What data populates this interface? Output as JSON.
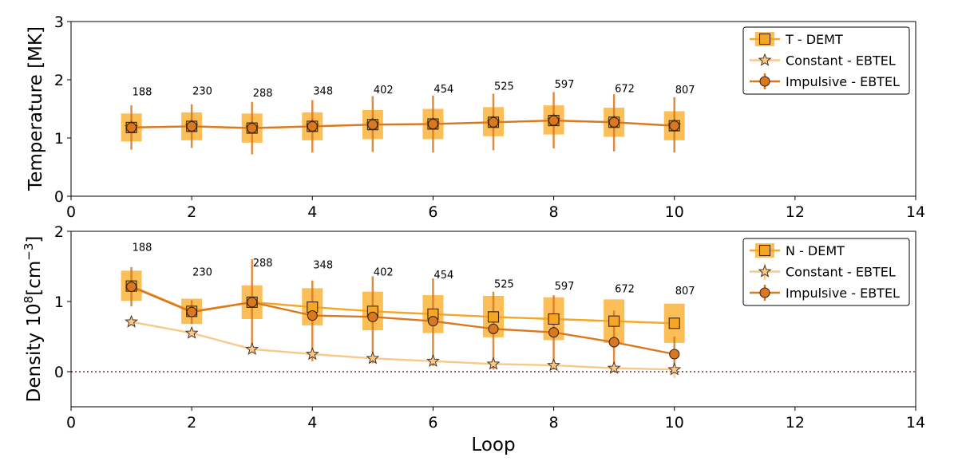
{
  "chart_data": [
    {
      "type": "scatter",
      "panel": "top",
      "xlabel": "",
      "ylabel": "Temperature [MK]",
      "xlim": [
        0,
        14
      ],
      "ylim": [
        0,
        3
      ],
      "xticks": [
        0,
        2,
        4,
        6,
        8,
        10,
        12,
        14
      ],
      "yticks": [
        0,
        1,
        2,
        3
      ],
      "x": [
        1,
        2,
        3,
        4,
        5,
        6,
        7,
        8,
        9,
        10
      ],
      "annotations": [
        "188",
        "230",
        "288",
        "348",
        "402",
        "454",
        "525",
        "597",
        "672",
        "807"
      ],
      "annotation_y": [
        1.73,
        1.75,
        1.71,
        1.75,
        1.77,
        1.78,
        1.83,
        1.86,
        1.79,
        1.77
      ],
      "zero_line": false,
      "legend": {
        "position": "top-right"
      },
      "series": [
        {
          "name": "T - DEMT",
          "marker": "square",
          "color": "#f5a623",
          "line": false,
          "values": [
            1.18,
            1.2,
            1.17,
            1.2,
            1.23,
            1.24,
            1.27,
            1.3,
            1.27,
            1.21
          ],
          "band_low": [
            0.94,
            0.96,
            0.92,
            0.96,
            0.98,
            0.98,
            1.03,
            1.06,
            1.02,
            0.96
          ],
          "band_high": [
            1.42,
            1.44,
            1.42,
            1.44,
            1.48,
            1.5,
            1.53,
            1.56,
            1.52,
            1.46
          ]
        },
        {
          "name": "Constant - EBTEL",
          "marker": "star",
          "color": "#f8c98a",
          "line": true,
          "values": [
            1.18,
            1.2,
            1.17,
            1.2,
            1.23,
            1.24,
            1.27,
            1.3,
            1.27,
            1.21
          ]
        },
        {
          "name": "Impulsive - EBTEL",
          "marker": "circle",
          "color": "#d9781f",
          "line": true,
          "values": [
            1.18,
            1.2,
            1.17,
            1.2,
            1.23,
            1.24,
            1.27,
            1.3,
            1.27,
            1.21
          ],
          "err_low": [
            0.8,
            0.83,
            0.72,
            0.75,
            0.76,
            0.75,
            0.79,
            0.82,
            0.77,
            0.75
          ],
          "err_high": [
            1.56,
            1.58,
            1.62,
            1.65,
            1.72,
            1.73,
            1.76,
            1.79,
            1.75,
            1.7
          ]
        }
      ]
    },
    {
      "type": "scatter",
      "panel": "bottom",
      "xlabel": "Loop",
      "ylabel_main": "Density 10",
      "ylabel_sup1": "8",
      "ylabel_mid": "[cm",
      "ylabel_sup2": "−3",
      "ylabel_end": "]",
      "xlim": [
        0,
        14
      ],
      "ylim": [
        -0.5,
        2
      ],
      "xticks": [
        0,
        2,
        4,
        6,
        8,
        10,
        12,
        14
      ],
      "yticks": [
        0,
        1,
        2
      ],
      "x": [
        1,
        2,
        3,
        4,
        5,
        6,
        7,
        8,
        9,
        10
      ],
      "annotations": [
        "188",
        "230",
        "288",
        "348",
        "402",
        "454",
        "525",
        "597",
        "672",
        "807"
      ],
      "annotation_y": [
        1.72,
        1.37,
        1.5,
        1.47,
        1.37,
        1.33,
        1.2,
        1.17,
        1.13,
        1.1
      ],
      "zero_line": true,
      "legend": {
        "position": "top-right"
      },
      "series": [
        {
          "name": "N - DEMT",
          "marker": "square",
          "color": "#f5a623",
          "line": true,
          "values": [
            1.22,
            0.86,
            0.99,
            0.92,
            0.86,
            0.82,
            0.78,
            0.75,
            0.72,
            0.69
          ],
          "band_low": [
            1.01,
            0.68,
            0.75,
            0.66,
            0.59,
            0.55,
            0.49,
            0.45,
            0.41,
            0.41
          ],
          "band_high": [
            1.44,
            1.04,
            1.23,
            1.19,
            1.14,
            1.09,
            1.08,
            1.06,
            1.03,
            0.97
          ]
        },
        {
          "name": "Constant - EBTEL",
          "marker": "star",
          "color": "#f8c98a",
          "line": true,
          "values": [
            0.71,
            0.55,
            0.32,
            0.25,
            0.19,
            0.15,
            0.11,
            0.09,
            0.05,
            0.03
          ],
          "err_low": [
            0.71,
            0.55,
            0.32,
            0.25,
            0.19,
            0.15,
            0.11,
            0.09,
            0.05,
            -0.09
          ],
          "err_high": [
            0.71,
            0.55,
            0.32,
            0.25,
            0.19,
            0.15,
            0.11,
            0.09,
            0.05,
            0.03
          ]
        },
        {
          "name": "Impulsive - EBTEL",
          "marker": "circle",
          "color": "#d9781f",
          "line": true,
          "values": [
            1.21,
            0.85,
            0.99,
            0.8,
            0.78,
            0.72,
            0.61,
            0.56,
            0.42,
            0.25
          ],
          "err_low": [
            0.93,
            0.68,
            0.35,
            0.15,
            0.12,
            0.08,
            0.03,
            0.03,
            0.02,
            0.02
          ],
          "err_high": [
            1.49,
            1.02,
            1.6,
            1.3,
            1.36,
            1.33,
            1.14,
            1.09,
            0.87,
            0.5
          ]
        }
      ]
    }
  ]
}
